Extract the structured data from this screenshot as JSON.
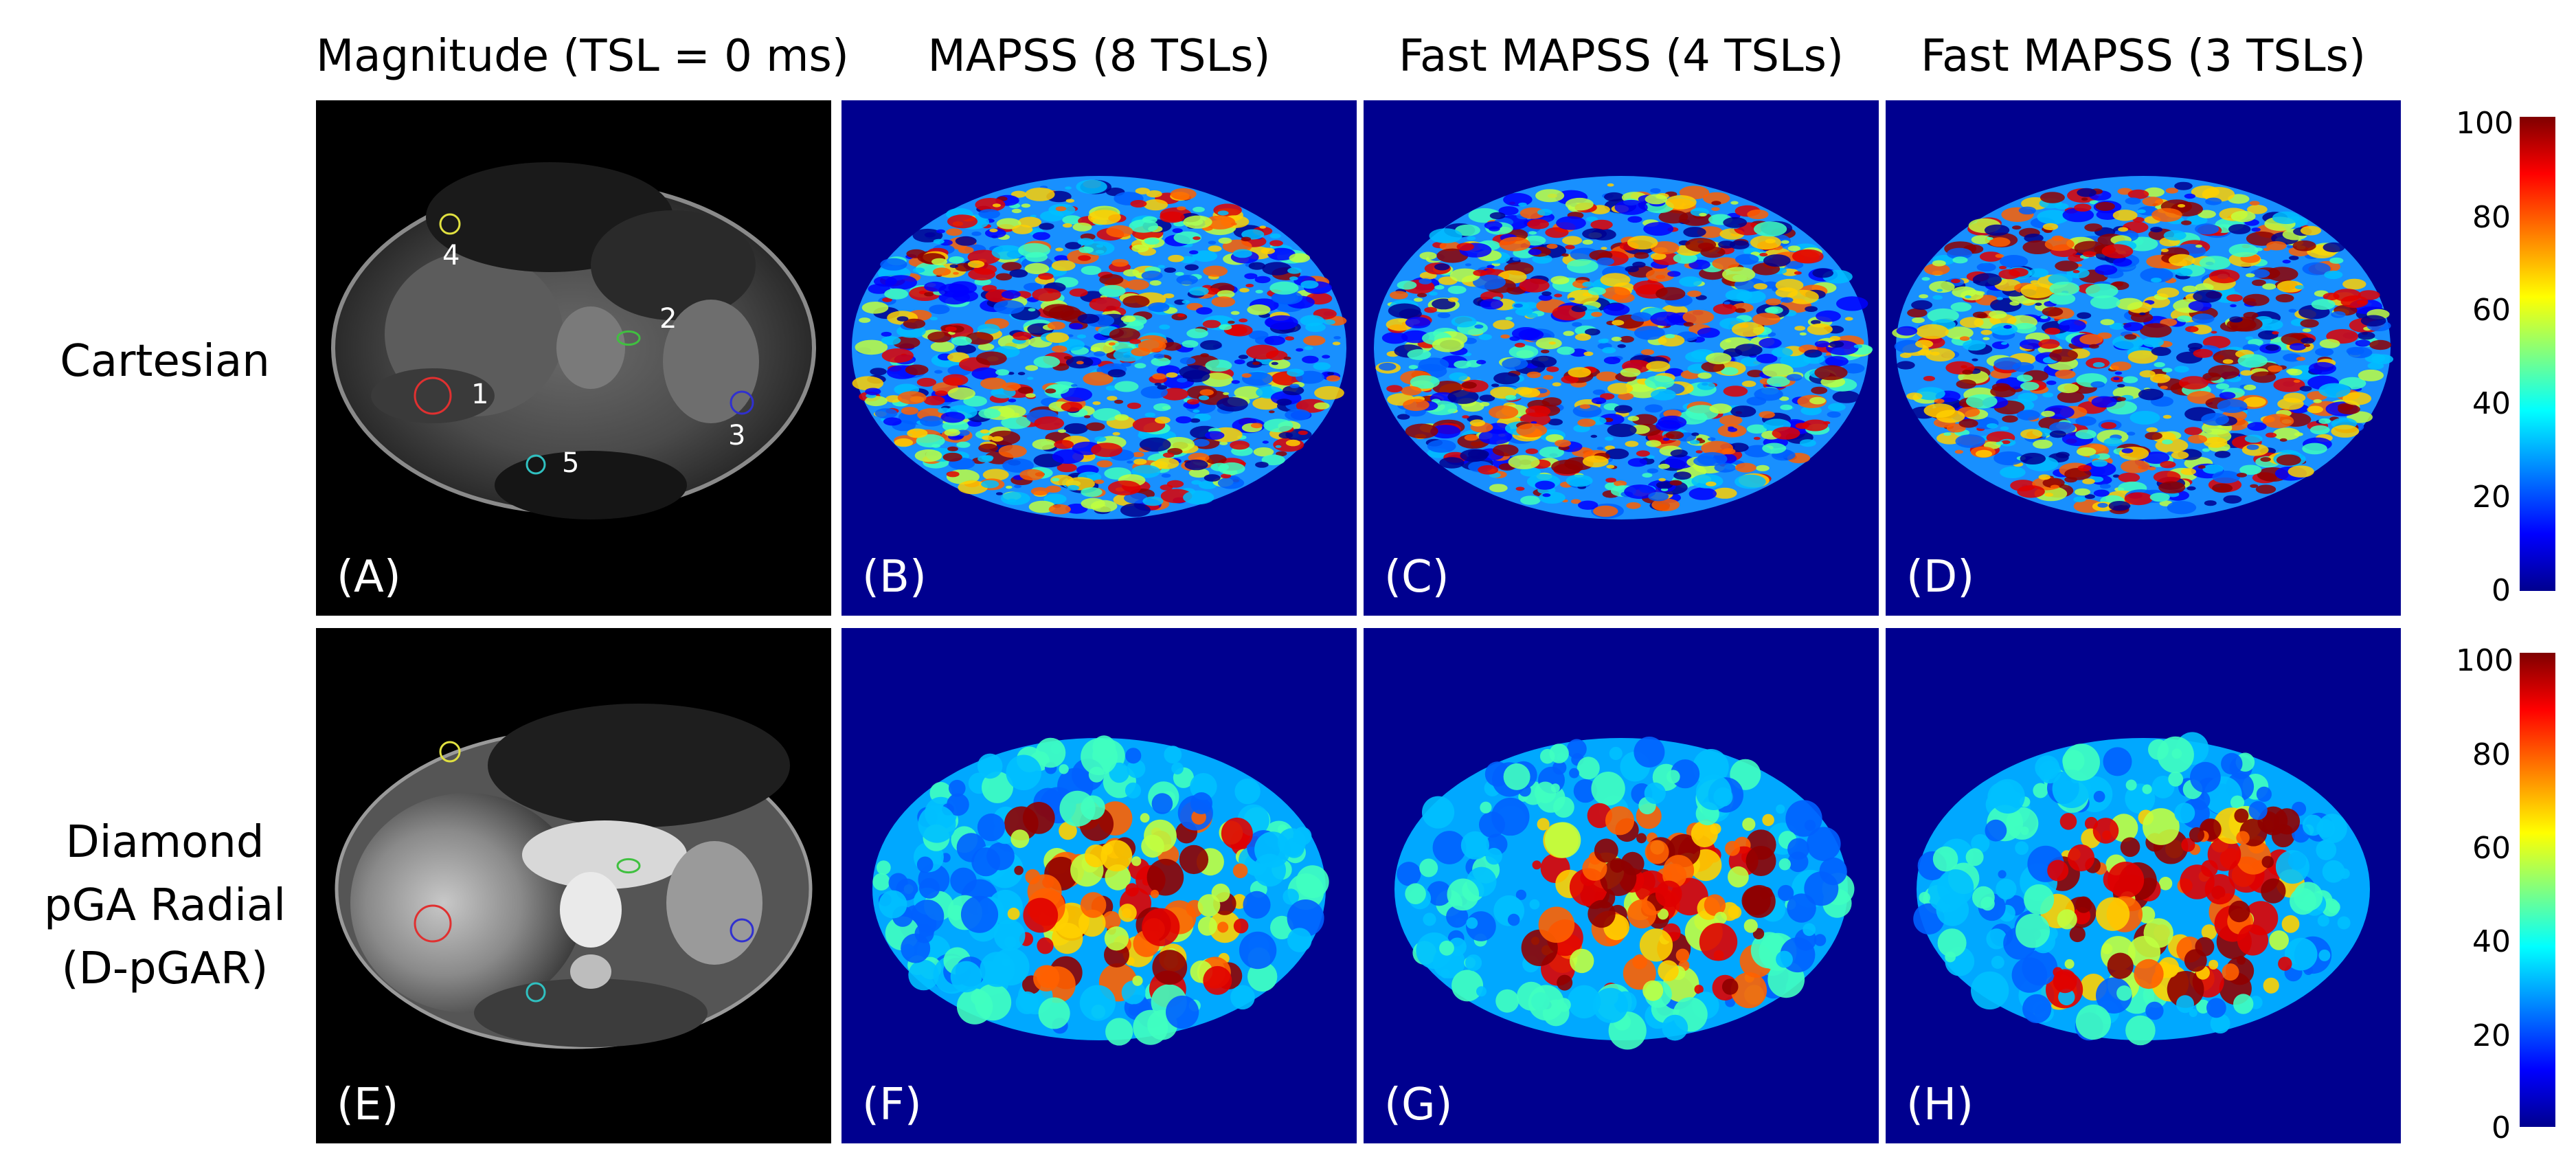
{
  "column_titles": [
    "Magnitude (TSL = 0 ms)",
    "MAPSS (8 TSLs)",
    "Fast MAPSS (4 TSLs)",
    "Fast MAPSS (3 TSLs)"
  ],
  "row_titles": {
    "cartesian": [
      "Cartesian"
    ],
    "radial": [
      "Diamond",
      "pGA Radial",
      "(D-pGAR)"
    ]
  },
  "panel_labels": [
    "(A)",
    "(B)",
    "(C)",
    "(D)",
    "(E)",
    "(F)",
    "(G)",
    "(H)"
  ],
  "roi_numbers": [
    "1",
    "2",
    "3",
    "4",
    "5"
  ],
  "roi_colors": [
    "#e03030",
    "#40c040",
    "#3030d0",
    "#e0e040",
    "#30c0c0"
  ],
  "colorbar": {
    "ticks": [
      "100",
      "80",
      "60",
      "40",
      "20",
      "0"
    ],
    "colormap": "jet"
  }
}
